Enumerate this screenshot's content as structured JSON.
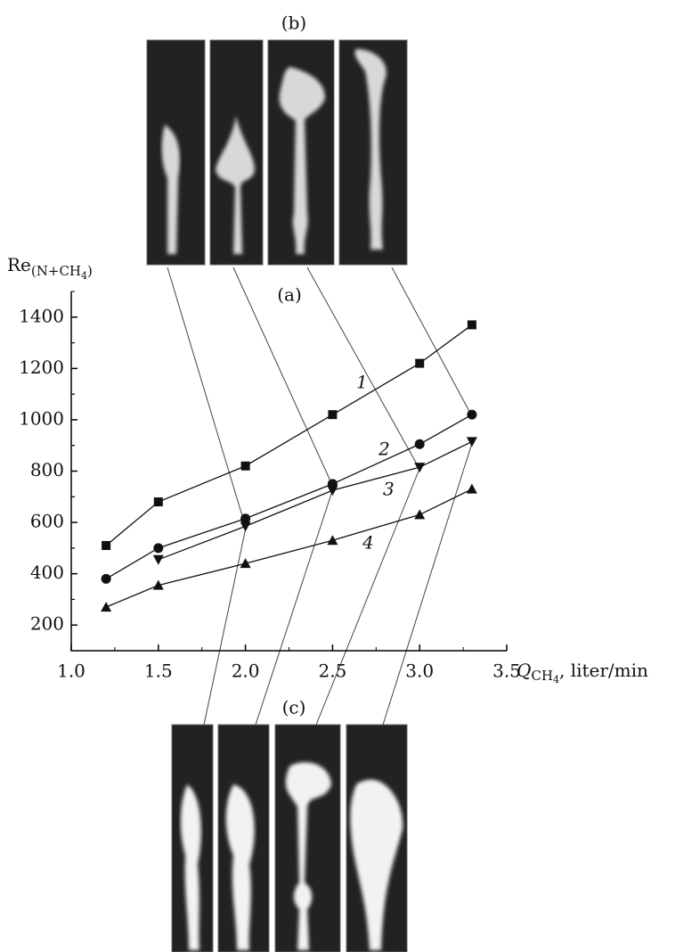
{
  "chart_data": {
    "type": "line",
    "label_b": "(b)",
    "label_a": "(a)",
    "label_c": "(c)",
    "y_label": [
      "Re",
      "(N+CH",
      "4",
      ")"
    ],
    "x_label": [
      "Q",
      "CH",
      "4",
      ", liter/min"
    ],
    "xlim": [
      1.0,
      3.5
    ],
    "xticks": [
      {
        "value": 1.0,
        "label": "1.0"
      },
      {
        "value": 1.5,
        "label": "1.5"
      },
      {
        "value": 2.0,
        "label": "2.0"
      },
      {
        "value": 2.5,
        "label": "2.5"
      },
      {
        "value": 3.0,
        "label": "3.0"
      },
      {
        "value": 3.5,
        "label": "3.5"
      }
    ],
    "ylim": [
      100,
      1500
    ],
    "yticks": [
      200,
      400,
      600,
      800,
      1000,
      1200,
      1400
    ],
    "series": [
      {
        "name": "1",
        "marker": "square",
        "color": "#111111",
        "x": [
          1.2,
          1.5,
          2.0,
          2.5,
          3.0,
          3.3
        ],
        "values": [
          510,
          680,
          820,
          1020,
          1220,
          1370
        ]
      },
      {
        "name": "2",
        "marker": "circle",
        "color": "#111111",
        "x": [
          1.2,
          1.5,
          2.0,
          2.5,
          3.0,
          3.3
        ],
        "values": [
          380,
          500,
          615,
          750,
          905,
          1020
        ]
      },
      {
        "name": "3",
        "marker": "triangle-down",
        "color": "#111111",
        "x": [
          1.5,
          2.0,
          2.5,
          3.0,
          3.3
        ],
        "values": [
          455,
          585,
          725,
          815,
          915
        ]
      },
      {
        "name": "4",
        "marker": "triangle-up",
        "color": "#111111",
        "x": [
          1.2,
          1.5,
          2.0,
          2.5,
          3.0,
          3.3
        ],
        "values": [
          270,
          355,
          440,
          530,
          630,
          730
        ]
      }
    ]
  }
}
